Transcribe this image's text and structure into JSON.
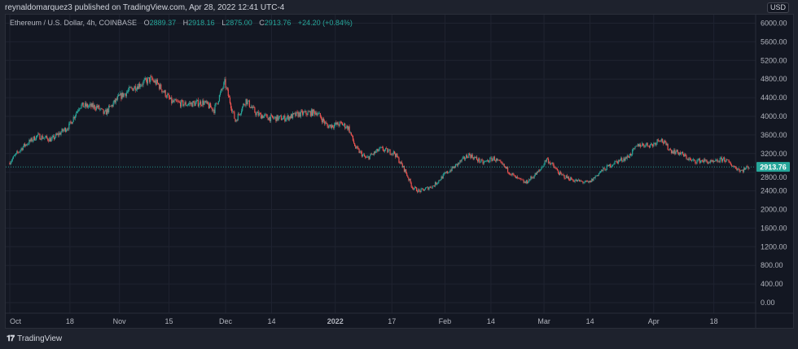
{
  "header": {
    "published": "reynaldomarquez3 published on TradingView.com, Apr 28, 2022 12:41 UTC-4"
  },
  "legend": {
    "symbol": "Ethereum / U.S. Dollar, 4h, COINBASE",
    "o_label": "O",
    "o": "2889.37",
    "h_label": "H",
    "h": "2918.16",
    "l_label": "L",
    "l": "2875.00",
    "c_label": "C",
    "c": "2913.76",
    "change": "+24.20 (+0.84%)"
  },
  "currency_button": "USD",
  "brand": "TradingView",
  "colors": {
    "up": "#26a69a",
    "down": "#ef5350",
    "background": "#131722",
    "last_price": "#26a69a"
  },
  "chart_data": {
    "type": "candlestick",
    "interval": "4h",
    "ylim": [
      0,
      6000
    ],
    "y_ticks": [
      "6000.00",
      "5600.00",
      "5200.00",
      "4800.00",
      "4400.00",
      "4000.00",
      "3600.00",
      "3200.00",
      "2800.00",
      "2400.00",
      "2000.00",
      "1600.00",
      "1200.00",
      "800.00",
      "400.00",
      "0.00"
    ],
    "x_ticks": [
      {
        "label": "Oct",
        "date": "2021-10-01"
      },
      {
        "label": "18",
        "date": "2021-10-18"
      },
      {
        "label": "Nov",
        "date": "2021-11-01"
      },
      {
        "label": "15",
        "date": "2021-11-15"
      },
      {
        "label": "Dec",
        "date": "2021-12-01"
      },
      {
        "label": "14",
        "date": "2021-12-14"
      },
      {
        "label": "2022",
        "date": "2022-01-01"
      },
      {
        "label": "17",
        "date": "2022-01-17"
      },
      {
        "label": "Feb",
        "date": "2022-02-01"
      },
      {
        "label": "14",
        "date": "2022-02-14"
      },
      {
        "label": "Mar",
        "date": "2022-03-01"
      },
      {
        "label": "14",
        "date": "2022-03-14"
      },
      {
        "label": "Apr",
        "date": "2022-04-01"
      },
      {
        "label": "18",
        "date": "2022-04-18"
      }
    ],
    "last_price": "2913.76",
    "grid": true,
    "approx_closes": [
      [
        "2021-10-01",
        3000
      ],
      [
        "2021-10-05",
        3350
      ],
      [
        "2021-10-09",
        3580
      ],
      [
        "2021-10-13",
        3500
      ],
      [
        "2021-10-18",
        3790
      ],
      [
        "2021-10-21",
        4230
      ],
      [
        "2021-10-26",
        4200
      ],
      [
        "2021-10-28",
        4050
      ],
      [
        "2021-11-01",
        4400
      ],
      [
        "2021-11-05",
        4610
      ],
      [
        "2021-11-10",
        4800
      ],
      [
        "2021-11-12",
        4700
      ],
      [
        "2021-11-16",
        4310
      ],
      [
        "2021-11-20",
        4260
      ],
      [
        "2021-11-25",
        4300
      ],
      [
        "2021-11-28",
        4140
      ],
      [
        "2021-12-01",
        4720
      ],
      [
        "2021-12-04",
        3900
      ],
      [
        "2021-12-07",
        4350
      ],
      [
        "2021-12-10",
        4050
      ],
      [
        "2021-12-14",
        3960
      ],
      [
        "2021-12-18",
        3960
      ],
      [
        "2021-12-22",
        4050
      ],
      [
        "2021-12-27",
        4090
      ],
      [
        "2021-12-30",
        3790
      ],
      [
        "2022-01-03",
        3840
      ],
      [
        "2022-01-05",
        3750
      ],
      [
        "2022-01-07",
        3320
      ],
      [
        "2022-01-10",
        3090
      ],
      [
        "2022-01-14",
        3300
      ],
      [
        "2022-01-18",
        3210
      ],
      [
        "2022-01-21",
        2830
      ],
      [
        "2022-01-23",
        2480
      ],
      [
        "2022-01-25",
        2390
      ],
      [
        "2022-01-29",
        2510
      ],
      [
        "2022-02-01",
        2740
      ],
      [
        "2022-02-04",
        2920
      ],
      [
        "2022-02-08",
        3180
      ],
      [
        "2022-02-12",
        3000
      ],
      [
        "2022-02-15",
        3100
      ],
      [
        "2022-02-18",
        2920
      ],
      [
        "2022-02-21",
        2690
      ],
      [
        "2022-02-24",
        2570
      ],
      [
        "2022-02-28",
        2830
      ],
      [
        "2022-03-02",
        3090
      ],
      [
        "2022-03-06",
        2740
      ],
      [
        "2022-03-10",
        2620
      ],
      [
        "2022-03-14",
        2570
      ],
      [
        "2022-03-17",
        2800
      ],
      [
        "2022-03-21",
        3000
      ],
      [
        "2022-03-25",
        3130
      ],
      [
        "2022-03-28",
        3390
      ],
      [
        "2022-04-01",
        3390
      ],
      [
        "2022-04-03",
        3530
      ],
      [
        "2022-04-06",
        3270
      ],
      [
        "2022-04-09",
        3200
      ],
      [
        "2022-04-12",
        3040
      ],
      [
        "2022-04-15",
        3050
      ],
      [
        "2022-04-18",
        3000
      ],
      [
        "2022-04-21",
        3090
      ],
      [
        "2022-04-24",
        2920
      ],
      [
        "2022-04-26",
        2830
      ],
      [
        "2022-04-28",
        2913.76
      ]
    ]
  }
}
